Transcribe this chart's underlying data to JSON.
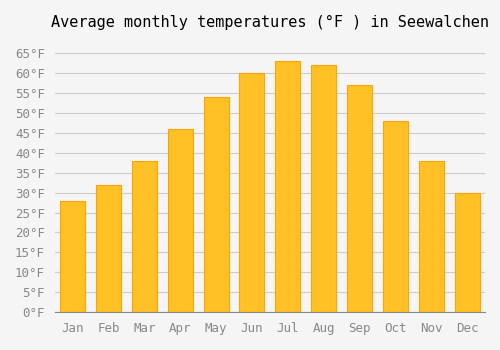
{
  "title": "Average monthly temperatures (°F ) in Seewalchen",
  "months": [
    "Jan",
    "Feb",
    "Mar",
    "Apr",
    "May",
    "Jun",
    "Jul",
    "Aug",
    "Sep",
    "Oct",
    "Nov",
    "Dec"
  ],
  "values": [
    28,
    32,
    38,
    46,
    54,
    60,
    63,
    62,
    57,
    48,
    38,
    30
  ],
  "bar_color": "#FFC125",
  "bar_edge_color": "#FFA500",
  "background_color": "#F5F5F5",
  "grid_color": "#CCCCCC",
  "ylim": [
    0,
    68
  ],
  "yticks": [
    0,
    5,
    10,
    15,
    20,
    25,
    30,
    35,
    40,
    45,
    50,
    55,
    60,
    65
  ],
  "title_fontsize": 11,
  "tick_fontsize": 9
}
